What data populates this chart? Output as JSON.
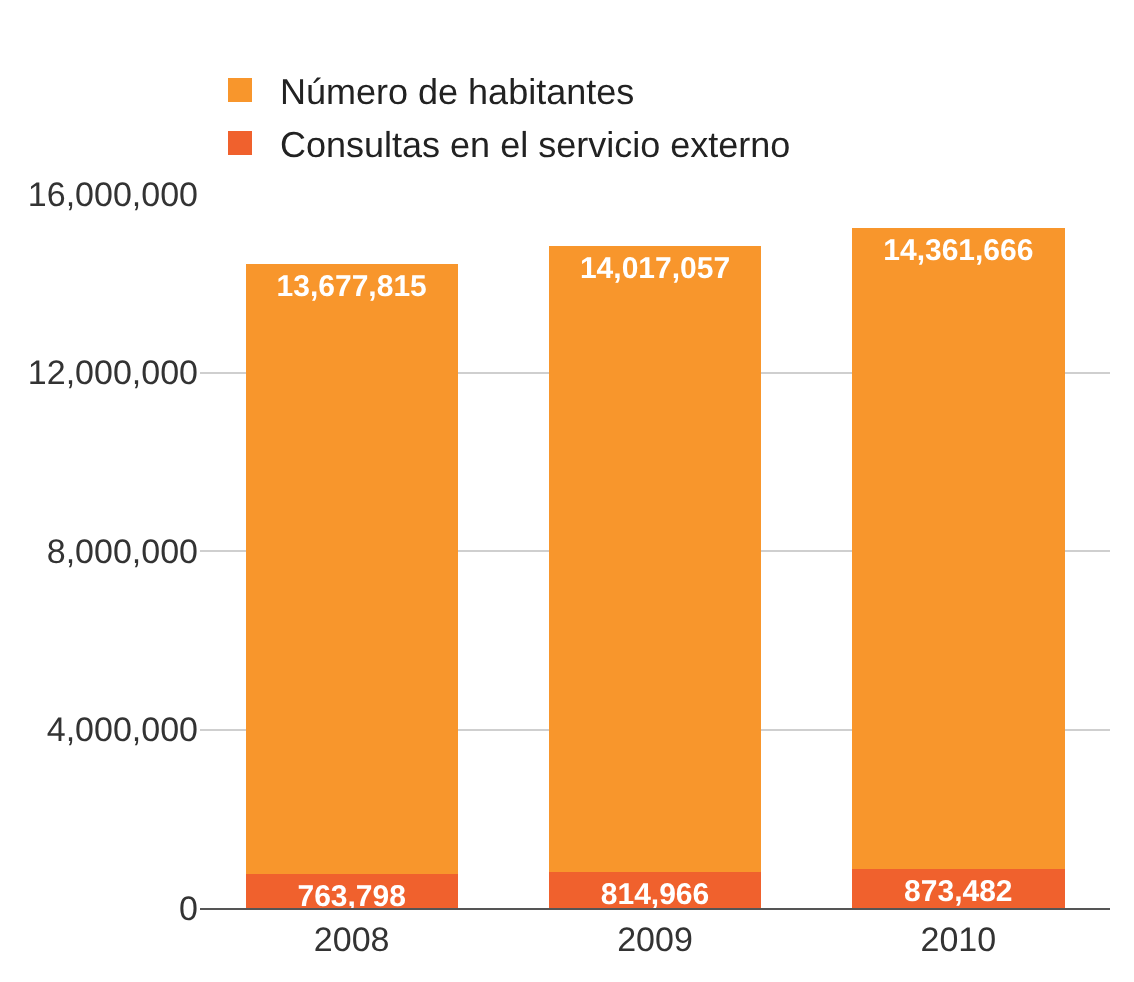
{
  "chart_data": {
    "type": "bar",
    "stacked": true,
    "categories": [
      "2008",
      "2009",
      "2010"
    ],
    "series": [
      {
        "name": "Consultas en el servicio externo",
        "color": "#f0612d",
        "values": [
          763798,
          814966,
          873482
        ],
        "value_labels": [
          "763,798",
          "814,966",
          "873,482"
        ]
      },
      {
        "name": "Número de habitantes",
        "color": "#f8962c",
        "values": [
          13677815,
          14017057,
          14361666
        ],
        "value_labels": [
          "13,677,815",
          "14,017,057",
          "14,361,666"
        ]
      }
    ],
    "ylim": [
      0,
      16000000
    ],
    "yticks": [
      {
        "value": 0,
        "label": "0"
      },
      {
        "value": 4000000,
        "label": "4,000,000"
      },
      {
        "value": 8000000,
        "label": "8,000,000"
      },
      {
        "value": 12000000,
        "label": "12,000,000"
      },
      {
        "value": 16000000,
        "label": "16,000,000"
      }
    ],
    "grid": "y",
    "legend": "top"
  }
}
